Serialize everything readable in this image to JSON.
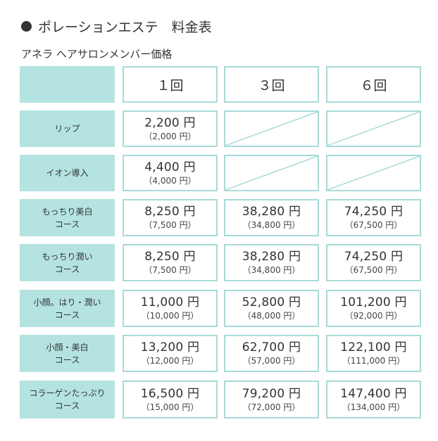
{
  "title": "ポレーションエステ　料金表",
  "subtitle": "アネラ ヘアサロンメンバー価格",
  "colors": {
    "accent_teal": "#b4e3e1",
    "border_teal": "#a8dad8",
    "text": "#333333"
  },
  "header": {
    "col1": "１回",
    "col2": "３回",
    "col3": "６回"
  },
  "rows": [
    {
      "label_line1": "リップ",
      "label_line2": "",
      "c1": {
        "price": "2,200 円",
        "sub": "（2,000 円）"
      },
      "c2": {
        "price": "",
        "sub": ""
      },
      "c3": {
        "price": "",
        "sub": ""
      }
    },
    {
      "label_line1": "イオン導入",
      "label_line2": "",
      "c1": {
        "price": "4,400 円",
        "sub": "（4,000 円）"
      },
      "c2": {
        "price": "",
        "sub": ""
      },
      "c3": {
        "price": "",
        "sub": ""
      }
    },
    {
      "label_line1": "もっちり美白",
      "label_line2": "コース",
      "c1": {
        "price": "8,250 円",
        "sub": "（7,500 円）"
      },
      "c2": {
        "price": "38,280 円",
        "sub": "（34,800 円）"
      },
      "c3": {
        "price": "74,250 円",
        "sub": "（67,500 円）"
      }
    },
    {
      "label_line1": "もっちり潤い",
      "label_line2": "コース",
      "c1": {
        "price": "8,250 円",
        "sub": "（7,500 円）"
      },
      "c2": {
        "price": "38,280 円",
        "sub": "（34,800 円）"
      },
      "c3": {
        "price": "74,250 円",
        "sub": "（67,500 円）"
      }
    },
    {
      "label_line1": "小顔。はり・潤い",
      "label_line2": "コース",
      "c1": {
        "price": "11,000 円",
        "sub": "（10,000 円）"
      },
      "c2": {
        "price": "52,800 円",
        "sub": "（48,000 円）"
      },
      "c3": {
        "price": "101,200 円",
        "sub": "（92,000 円）"
      }
    },
    {
      "label_line1": "小顔・美白",
      "label_line2": "コース",
      "c1": {
        "price": "13,200 円",
        "sub": "（12,000 円）"
      },
      "c2": {
        "price": "62,700 円",
        "sub": "（57,000 円）"
      },
      "c3": {
        "price": "122,100 円",
        "sub": "（111,000 円）"
      }
    },
    {
      "label_line1": "コラーゲンたっぷり",
      "label_line2": "コース",
      "c1": {
        "price": "16,500 円",
        "sub": "（15,000 円）"
      },
      "c2": {
        "price": "79,200 円",
        "sub": "（72,000 円）"
      },
      "c3": {
        "price": "147,400 円",
        "sub": "（134,000 円）"
      }
    }
  ]
}
